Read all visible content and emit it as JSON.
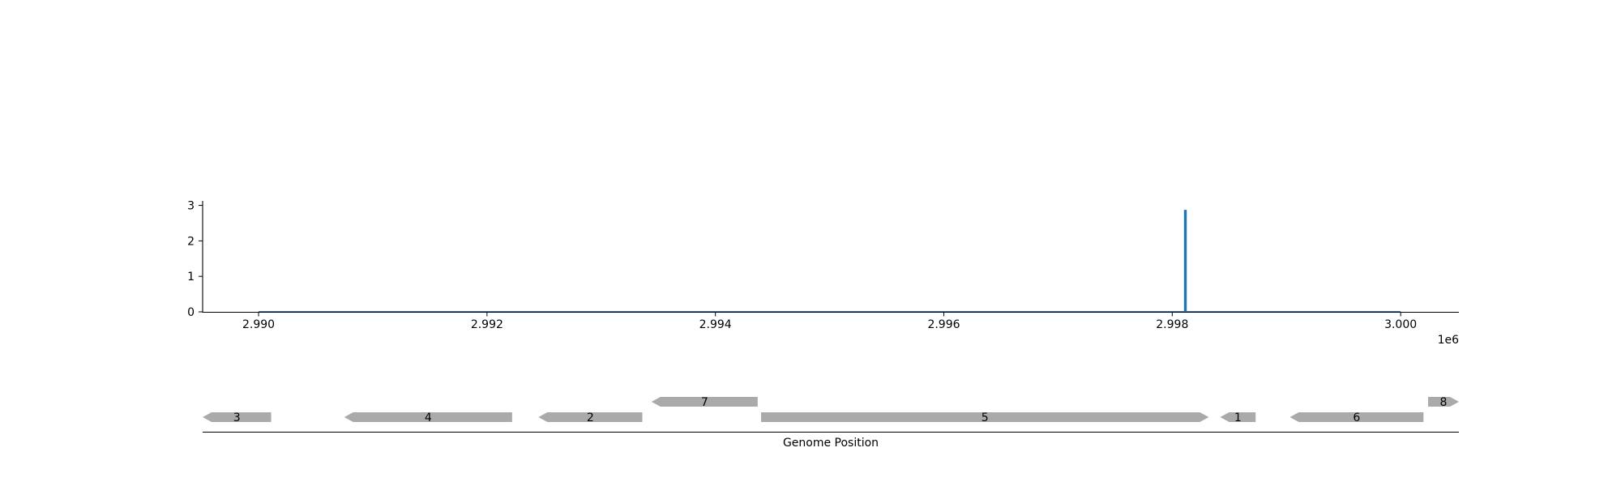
{
  "chart_data": [
    {
      "type": "line",
      "title": "",
      "xlabel": "",
      "ylabel": "",
      "x_offset_label": "1e6",
      "xlim": [
        2.98951,
        3.00051
      ],
      "ylim": [
        0,
        3.15
      ],
      "x_ticks": [
        2.99,
        2.992,
        2.994,
        2.996,
        2.998,
        3.0
      ],
      "x_tick_labels": [
        "2.990",
        "2.992",
        "2.994",
        "2.996",
        "2.998",
        "3.000"
      ],
      "y_ticks": [
        0,
        1,
        2,
        3
      ],
      "y_tick_labels": [
        "0",
        "1",
        "2",
        "3"
      ],
      "grid": false,
      "line_color": "#1f77b4",
      "series": [
        {
          "x": [
            2.99,
            2.99811,
            2.99811,
            2.99812,
            2.99812,
            3.0
          ],
          "y": [
            0,
            0,
            2.85,
            2.85,
            0,
            0
          ]
        }
      ]
    },
    {
      "type": "gene-track",
      "xlabel": "Genome Position",
      "xlim": [
        2.98951,
        3.00051
      ],
      "feature_color": "#aaaaaa",
      "features": [
        {
          "label": "3",
          "start": 2.98951,
          "end": 2.99011,
          "strand": "-",
          "row": 0
        },
        {
          "label": "4",
          "start": 2.99075,
          "end": 2.99222,
          "strand": "-",
          "row": 0
        },
        {
          "label": "2",
          "start": 2.99245,
          "end": 2.99336,
          "strand": "-",
          "row": 0
        },
        {
          "label": "7",
          "start": 2.99344,
          "end": 2.99437,
          "strand": "-",
          "row": 1
        },
        {
          "label": "5",
          "start": 2.9944,
          "end": 2.99832,
          "strand": "+",
          "row": 0
        },
        {
          "label": "1",
          "start": 2.99842,
          "end": 2.99873,
          "strand": "-",
          "row": 0
        },
        {
          "label": "6",
          "start": 2.99903,
          "end": 3.0002,
          "strand": "-",
          "row": 0
        },
        {
          "label": "8",
          "start": 3.00024,
          "end": 3.00051,
          "strand": "+",
          "row": 1
        }
      ]
    }
  ]
}
